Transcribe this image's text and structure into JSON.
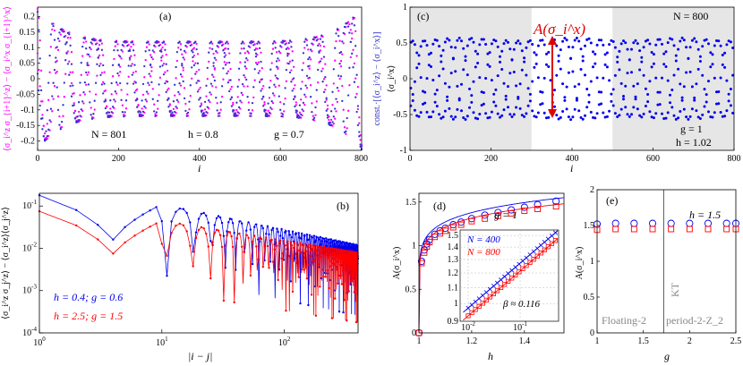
{
  "chart_data": [
    {
      "id": "a",
      "type": "scatter",
      "panel_label": "(a)",
      "xlabel": "i",
      "ylabel_left": "⟨σ_i^z σ_{i+1}^z⟩ − ⟨σ_i^x σ_{i+1}^x⟩",
      "ylabel_right": "const.·[⟨σ_i^z⟩ − ⟨σ_i^x⟩]",
      "xlim": [
        0,
        801
      ],
      "ylim": [
        -0.23,
        0.23
      ],
      "xticks": [
        "0",
        "200",
        "400",
        "600",
        "800"
      ],
      "yticks": [
        "-0.2",
        "-0.15",
        "-0.1",
        "-0.05",
        "0",
        "0.05",
        "0.1",
        "0.15",
        "0.2"
      ],
      "annotations": [
        "N = 801",
        "h = 0.8",
        "g = 0.7"
      ],
      "params": {
        "N": 801,
        "h": 0.8,
        "g": 0.7
      },
      "series": [
        {
          "color": "#ff00ff",
          "envelope": {
            "edge": 0.225,
            "center": 0.12
          }
        },
        {
          "color": "#3333cc",
          "envelope": {
            "edge": 0.225,
            "center": 0.12
          }
        }
      ]
    },
    {
      "id": "c",
      "type": "scatter",
      "panel_label": "(c)",
      "xlabel": "i",
      "ylabel": "⟨σ_i^x⟩",
      "xlim": [
        0,
        800
      ],
      "ylim": [
        -1,
        1
      ],
      "xticks": [
        "0",
        "200",
        "400",
        "600",
        "800"
      ],
      "yticks": [
        "-1",
        "-0.5",
        "0",
        "0.5",
        "1"
      ],
      "annotations": [
        "N = 800",
        "g = 1",
        "h = 1.02"
      ],
      "params": {
        "N": 800,
        "g": 1,
        "h": 1.02
      },
      "arrow_label": "A(σ_i^x)",
      "shaded_x_ranges": [
        [
          0,
          300
        ],
        [
          500,
          800
        ]
      ],
      "series": [
        {
          "color": "#0000ee",
          "amplitude": 0.55,
          "inner": 0.06
        }
      ]
    },
    {
      "id": "b",
      "type": "line",
      "panel_label": "(b)",
      "xlabel": "|i − j|",
      "ylabel": "⟨σ_i^z σ_j^z⟩ − ⟨σ_i^z⟩⟨σ_j^z⟩",
      "xscale": "log",
      "yscale": "log",
      "xlim": [
        1,
        400
      ],
      "ylim": [
        0.0001,
        0.2
      ],
      "xticks": [
        "10^0",
        "10^1",
        "10^2"
      ],
      "yticks": [
        "10^-4",
        "10^-3",
        "10^-2",
        "10^-1"
      ],
      "series": [
        {
          "name": "h = 0.4;  g = 0.6",
          "color": "#0000ee",
          "start": 0.18,
          "min_at_4": 0.016,
          "envelope_at_10": 0.11,
          "envelope_at_400": 0.012
        },
        {
          "name": "h = 2.5;  g = 1.5",
          "color": "#ff0000",
          "start": 0.075,
          "min_at_4": 0.0075,
          "envelope_at_10": 0.045,
          "envelope_at_400": 0.008
        }
      ]
    },
    {
      "id": "d",
      "type": "scatter",
      "panel_label": "(d)",
      "xlabel": "h",
      "ylabel": "A(σ_i^x)",
      "xlim": [
        1,
        1.55
      ],
      "ylim": [
        0,
        1.6
      ],
      "xticks": [
        "1",
        "1.2",
        "1.4"
      ],
      "yticks": [
        "0",
        "0.5",
        "1",
        "1.5"
      ],
      "annotation": "g = 1",
      "series": [
        {
          "name": "N = 400",
          "color": "#0000ee",
          "marker": "circle",
          "x": [
            1.0,
            1.01,
            1.02,
            1.03,
            1.04,
            1.06,
            1.08,
            1.1,
            1.13,
            1.16,
            1.2,
            1.25,
            1.3,
            1.35,
            1.4,
            1.45,
            1.52
          ],
          "y": [
            0.0,
            0.82,
            0.95,
            1.02,
            1.07,
            1.13,
            1.17,
            1.2,
            1.24,
            1.27,
            1.31,
            1.35,
            1.38,
            1.41,
            1.44,
            1.47,
            1.51
          ]
        },
        {
          "name": "N = 800",
          "color": "#ff0000",
          "marker": "square",
          "x": [
            1.0,
            1.01,
            1.02,
            1.03,
            1.04,
            1.06,
            1.08,
            1.1,
            1.13,
            1.16,
            1.2,
            1.25,
            1.3,
            1.35,
            1.4,
            1.45,
            1.52
          ],
          "y": [
            0.0,
            0.8,
            0.92,
            0.99,
            1.04,
            1.1,
            1.14,
            1.17,
            1.21,
            1.24,
            1.28,
            1.31,
            1.34,
            1.37,
            1.4,
            1.42,
            1.45
          ]
        }
      ],
      "inset": {
        "xscale": "log",
        "yscale": "log",
        "xlim": [
          0.007,
          0.55
        ],
        "ylim": [
          0.9,
          1.55
        ],
        "xticks": [
          "10^-2",
          "10^-1"
        ],
        "yticks": [
          "0.9",
          "1",
          "1.1",
          "1.2",
          "1.3",
          "1.4",
          "1.5"
        ],
        "legend": [
          "N = 400",
          "N = 800"
        ],
        "annotation": "β ≈ 0.116",
        "beta": 0.116
      }
    },
    {
      "id": "e",
      "type": "scatter",
      "panel_label": "(e)",
      "xlabel": "g",
      "ylabel": "A(σ_i^x)",
      "xlim": [
        1,
        2.5
      ],
      "ylim": [
        0,
        2
      ],
      "xticks": [
        "1",
        "1.5",
        "2",
        "2.5"
      ],
      "yticks": [
        "0",
        "0.5",
        "1",
        "1.5",
        "2"
      ],
      "annotation": "h = 1.5",
      "phase_boundary_g": 1.72,
      "region_labels": [
        "Floating-2",
        "KT",
        "period-2-Z_2"
      ],
      "series": [
        {
          "color": "#0000ee",
          "marker": "circle",
          "x": [
            1.0,
            1.2,
            1.4,
            1.6,
            1.8,
            2.0,
            2.2,
            2.4,
            2.5
          ],
          "y": [
            1.52,
            1.53,
            1.53,
            1.53,
            1.53,
            1.53,
            1.53,
            1.53,
            1.53
          ]
        },
        {
          "color": "#ff0000",
          "marker": "square",
          "x": [
            1.0,
            1.2,
            1.4,
            1.6,
            1.8,
            2.0,
            2.2,
            2.4,
            2.5
          ],
          "y": [
            1.44,
            1.45,
            1.45,
            1.45,
            1.45,
            1.45,
            1.45,
            1.45,
            1.45
          ]
        }
      ]
    }
  ]
}
